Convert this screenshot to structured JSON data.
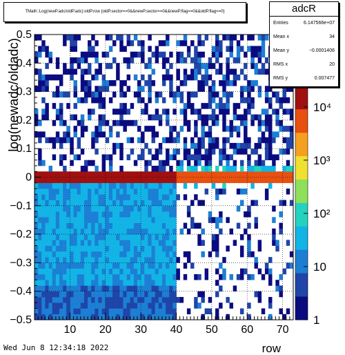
{
  "chart_data": {
    "type": "heatmap",
    "title": "TMath::Log(newP.adc/oldP.adc):oldP.row {oldP.sector==0&&newP.sector==0&&newP.flag==0&&oldP.flag==0}",
    "xlabel": "row",
    "ylabel": "log(newadc/oldadc)",
    "xlim": [
      0,
      73
    ],
    "ylim": [
      -0.5,
      0.5
    ],
    "x_ticks": [
      "10",
      "20",
      "30",
      "40",
      "50",
      "60",
      "70"
    ],
    "y_ticks": [
      "−0.5",
      "−0.4",
      "−0.3",
      "−0.2",
      "−0.1",
      "0",
      "0.1",
      "0.2",
      "0.3",
      "0.4",
      "0.5"
    ],
    "z_scale": "log",
    "z_ticks": [
      "1",
      "10",
      "10²",
      "10³",
      "10⁴"
    ],
    "grid": true,
    "palette": [
      "#0b0b80",
      "#1f45a8",
      "#1c7fd4",
      "#12b4e6",
      "#23d3c0",
      "#8ee05a",
      "#f0e030",
      "#f5a020",
      "#e85010",
      "#a01010"
    ],
    "regions": [
      {
        "x": [
          0,
          40
        ],
        "y": [
          -0.5,
          0
        ],
        "description_level": "dense",
        "z_approx": 200
      },
      {
        "x": [
          40,
          73
        ],
        "y": [
          -0.5,
          0
        ],
        "description_level": "sparse",
        "z_approx": 2
      },
      {
        "x": [
          0,
          40
        ],
        "y": [
          0,
          0.5
        ],
        "description_level": "sparse",
        "z_approx": 2
      },
      {
        "x": [
          40,
          73
        ],
        "y": [
          0,
          0.5
        ],
        "description_level": "sparse",
        "z_approx": 3
      },
      {
        "x": [
          0,
          73
        ],
        "y": [
          -0.005,
          0.01
        ],
        "description_level": "peak",
        "z_approx": 30000
      }
    ]
  },
  "stats": {
    "name": "adcR",
    "rows": [
      {
        "key": "Entries",
        "value": "6.147566e+07"
      },
      {
        "key": "Mean x",
        "value": "34"
      },
      {
        "key": "Mean y",
        "value": "−0.0001406"
      },
      {
        "key": "RMS x",
        "value": "20"
      },
      {
        "key": "RMS y",
        "value": "0.007477"
      }
    ]
  },
  "footer": {
    "date": "Wed Jun  8 12:34:18 2022"
  }
}
